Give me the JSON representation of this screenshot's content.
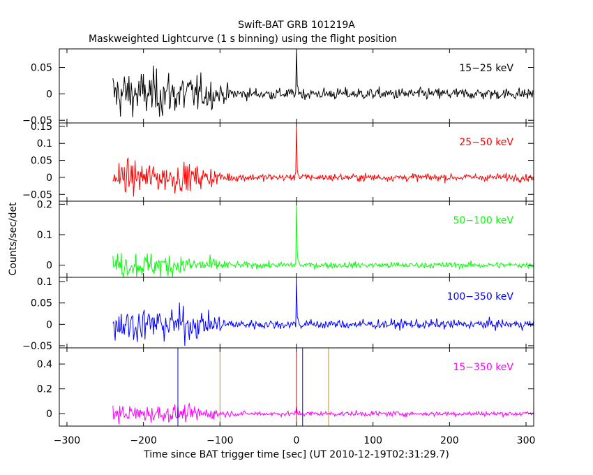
{
  "chart_data": {
    "type": "line",
    "title": "Swift-BAT GRB 101219A",
    "subtitle": "Maskweighted Lightcurve (1 s binning) using the flight position",
    "xlabel": "Time since BAT trigger time [sec] (UT 2010-12-19T02:31:29.7)",
    "ylabel": "Counts/sec/det",
    "xlim": [
      -310,
      310
    ],
    "x_ticks": [
      -300,
      -200,
      -100,
      0,
      100,
      200,
      300
    ],
    "x_tick_labels": [
      "−300",
      "−200",
      "−100",
      "0",
      "100",
      "200",
      "300"
    ],
    "x_start": -240,
    "x_end": 310,
    "panels": [
      {
        "band": "15−25 keV",
        "color": "#000000",
        "ylim": [
          -0.055,
          0.085
        ],
        "y_ticks": [
          -0.05,
          0,
          0.05
        ],
        "y_tick_labels": [
          "−0.05",
          "0",
          "0.05"
        ],
        "pre_noise": 0.022,
        "post_noise": 0.0055,
        "spike": 0.085
      },
      {
        "band": "25−50 keV",
        "color": "#ff0000",
        "ylim": [
          -0.07,
          0.16
        ],
        "y_ticks": [
          -0.05,
          0,
          0.05,
          0.1,
          0.15
        ],
        "y_tick_labels": [
          "−0.05",
          "0",
          "0.05",
          "0.1",
          "0.15"
        ],
        "pre_noise": 0.022,
        "post_noise": 0.0055,
        "spike": 0.155
      },
      {
        "band": "50−100 keV",
        "color": "#00ff00",
        "ylim": [
          -0.04,
          0.21
        ],
        "y_ticks": [
          0,
          0.1,
          0.2
        ],
        "y_tick_labels": [
          "0",
          "0.1",
          "0.2"
        ],
        "pre_noise": 0.02,
        "post_noise": 0.005,
        "spike": 0.205
      },
      {
        "band": "100−350 keV",
        "color": "#0000ff",
        "ylim": [
          -0.055,
          0.11
        ],
        "y_ticks": [
          -0.05,
          0,
          0.05,
          0.1
        ],
        "y_tick_labels": [
          "−0.05",
          "0",
          "0.05",
          "0.1"
        ],
        "pre_noise": 0.02,
        "post_noise": 0.0055,
        "spike": 0.107
      },
      {
        "band": "15−350 keV",
        "color": "#ff00ff",
        "ylim": [
          -0.1,
          0.53
        ],
        "y_ticks": [
          0,
          0.2,
          0.4
        ],
        "y_tick_labels": [
          "0",
          "0.2",
          "0.4"
        ],
        "pre_noise": 0.035,
        "post_noise": 0.01,
        "spike": 0.06
      }
    ],
    "marker_lines": [
      {
        "x": -155,
        "color": "#0000cc"
      },
      {
        "x": 8,
        "color": "#0000cc"
      },
      {
        "x": -100,
        "color": "#cc8800"
      },
      {
        "x": 42,
        "color": "#cc8800"
      },
      {
        "x": 0,
        "color": "#00aa00"
      },
      {
        "x": 0,
        "color": "#cc0000"
      }
    ]
  }
}
